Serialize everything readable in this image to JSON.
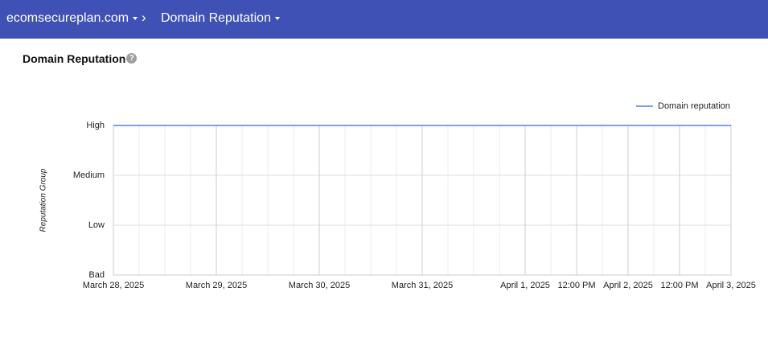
{
  "header": {
    "domain": "ecomsecureplan.com",
    "page": "Domain Reputation"
  },
  "section": {
    "title": "Domain Reputation"
  },
  "chart_data": {
    "type": "line",
    "ylabel": "Reputation Group",
    "x": [
      "2025-03-28",
      "2025-03-29",
      "2025-03-30",
      "2025-03-31",
      "2025-04-01",
      "2025-04-02",
      "2025-04-03"
    ],
    "series": [
      {
        "name": "Domain reputation",
        "color": "#4a86e8",
        "values": [
          3,
          3,
          3,
          3,
          3,
          3,
          3
        ]
      }
    ],
    "xlim": [
      "2025-03-28",
      "2025-04-03"
    ],
    "xticks": [
      {
        "value": "2025-03-28",
        "label": "March 28, 2025"
      },
      {
        "value": "2025-03-29",
        "label": "March 29, 2025"
      },
      {
        "value": "2025-03-30",
        "label": "March 30, 2025"
      },
      {
        "value": "2025-03-31",
        "label": "March 31, 2025"
      },
      {
        "value": "2025-04-01",
        "label": "April 1, 2025"
      },
      {
        "value": "2025-04-01T12:00",
        "label": "12:00 PM"
      },
      {
        "value": "2025-04-02",
        "label": "April 2, 2025"
      },
      {
        "value": "2025-04-02T12:00",
        "label": "12:00 PM"
      },
      {
        "value": "2025-04-03",
        "label": "April 3, 2025"
      }
    ],
    "ylim": [
      0,
      3
    ],
    "yticks": [
      {
        "value": 0,
        "label": "Bad"
      },
      {
        "value": 1,
        "label": "Low"
      },
      {
        "value": 2,
        "label": "Medium"
      },
      {
        "value": 3,
        "label": "High"
      }
    ],
    "grid": true,
    "legend": "top-right"
  }
}
